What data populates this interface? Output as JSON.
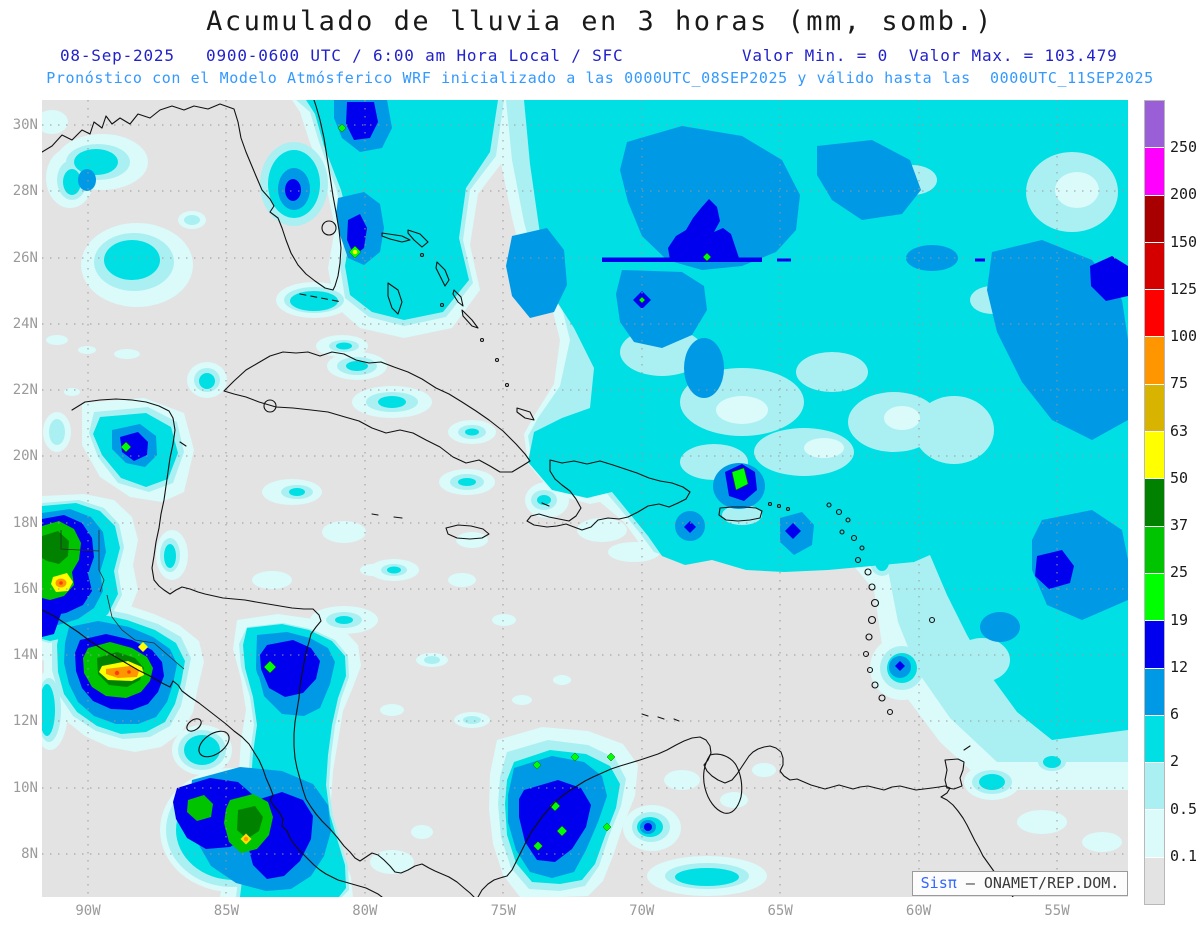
{
  "header": {
    "title": "Acumulado de lluvia en 3 horas (mm, somb.)",
    "line2_left": "08-Sep-2025   0900-0600 UTC / 6:00 am Hora Local / SFC",
    "line2_right": "Valor Min. = 0  Valor Max. = 103.479",
    "line3": "Pronóstico con el Modelo Atmósferico WRF inicializado a las 0000UTC_08SEP2025 y válido hasta las  0000UTC_11SEP2025"
  },
  "axes": {
    "lat_labels": [
      "30N",
      "28N",
      "26N",
      "24N",
      "22N",
      "20N",
      "18N",
      "16N",
      "14N",
      "12N",
      "10N",
      "8N"
    ],
    "lon_labels": [
      "90W",
      "85W",
      "80W",
      "75W",
      "70W",
      "65W",
      "60W",
      "55W"
    ]
  },
  "colorbar": {
    "labels": [
      "250",
      "200",
      "150",
      "125",
      "100",
      "75",
      "63",
      "50",
      "37",
      "25",
      "19",
      "12",
      "6",
      "2",
      "0.5",
      "0.1"
    ],
    "colors": [
      "#9a5fd6",
      "#ff00ff",
      "#a80000",
      "#d40000",
      "#ff0000",
      "#ff9600",
      "#d8b400",
      "#ffff00",
      "#008200",
      "#00c400",
      "#00ff00",
      "#0000ee",
      "#0099e6",
      "#00dfe3",
      "#aaf0f2",
      "#dbfafa",
      "#e3e3e3"
    ],
    "units": "mm"
  },
  "attribution": {
    "brand": "Sisπ",
    "separator": "– ",
    "org": "ONAMET/REP.DOM."
  },
  "colors": {
    "map_background": "#e3e3e3",
    "header_datetime_blue": "#2222cc",
    "model_info_blue": "#3399ff",
    "axis_gray": "#9a9a9a",
    "coastline": "#111111"
  }
}
